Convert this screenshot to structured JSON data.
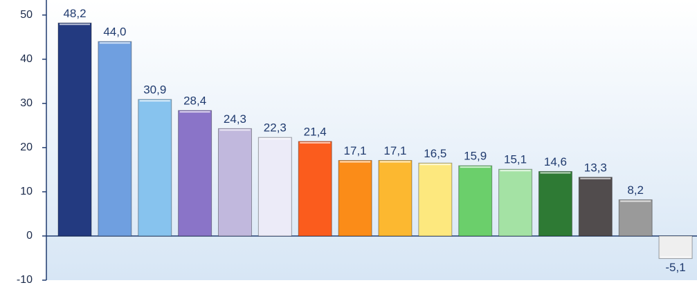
{
  "chart_data": {
    "type": "bar",
    "categories": [
      null,
      null,
      null,
      null,
      null,
      null,
      null,
      null,
      null,
      null,
      null,
      null,
      null,
      null,
      null,
      null
    ],
    "values": [
      48.2,
      44.0,
      30.9,
      28.4,
      24.3,
      22.3,
      21.4,
      17.1,
      17.1,
      16.5,
      15.9,
      15.1,
      14.6,
      13.3,
      8.2,
      -5.1
    ],
    "value_labels": [
      "48,2",
      "44,0",
      "30,9",
      "28,4",
      "24,3",
      "22,3",
      "21,4",
      "17,1",
      "17,1",
      "16,5",
      "15,9",
      "15,1",
      "14,6",
      "13,3",
      "8,2",
      "-5,1"
    ],
    "colors": [
      "#233a80",
      "#6f9fe0",
      "#87c3ee",
      "#8a74c8",
      "#c1b8dd",
      "#ecebf8",
      "#fb5c1d",
      "#fb8c18",
      "#fcb830",
      "#fde87e",
      "#6bcf6b",
      "#a4e2a4",
      "#2e7a34",
      "#514c4d",
      "#9a9a9a",
      "#efefef"
    ],
    "ylim": [
      -10,
      53.4
    ],
    "yticks": [
      -10,
      0,
      10,
      20,
      30,
      40,
      50
    ],
    "grid": false
  }
}
